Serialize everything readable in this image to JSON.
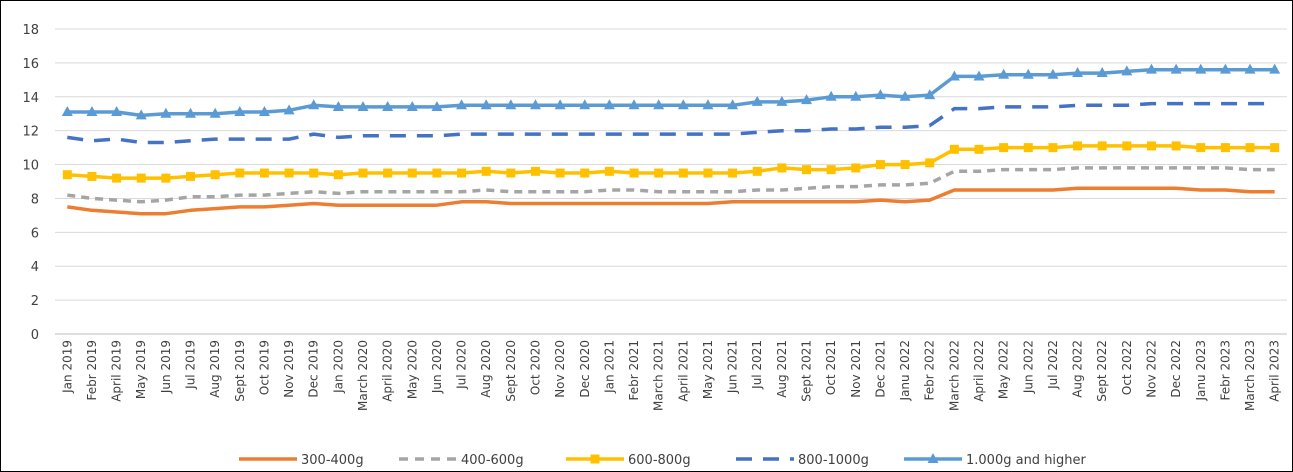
{
  "chart_data": {
    "type": "line",
    "title": "",
    "xlabel": "",
    "ylabel": "",
    "ylim": [
      0,
      18
    ],
    "yticks": [
      0,
      2,
      4,
      6,
      8,
      10,
      12,
      14,
      16,
      18
    ],
    "grid": "horizontal",
    "legend_position": "bottom",
    "categories": [
      "Jan 2019",
      "Febr 2019",
      "April 2019",
      "May 2019",
      "Jun 2019",
      "Jul 2019",
      "Aug 2019",
      "Sept 2019",
      "Oct 2019",
      "Nov 2019",
      "Dec 2019",
      "Jan 2020",
      "March 2020",
      "April 2020",
      "May 2020",
      "Jun 2020",
      "Jul 2020",
      "Aug 2020",
      "Sept 2020",
      "Oct 2020",
      "Nov 2020",
      "Dec 2020",
      "Jan 2021",
      "Febr 2021",
      "March 2021",
      "April 2021",
      "May 2021",
      "Jun 2021",
      "Jul 2021",
      "Aug 2021",
      "Sept 2021",
      "Oct 2021",
      "Nov 2021",
      "Dec 2021",
      "Janu 2022",
      "Febr 2022",
      "March 2022",
      "April 2022",
      "May 2022",
      "Jun 2022",
      "Jul 2022",
      "Aug 2022",
      "Sept 2022",
      "Oct 2022",
      "Nov 2022",
      "Dec 2022",
      "Janu 2023",
      "Febr 2023",
      "March 2023",
      "April 2023"
    ],
    "series": [
      {
        "name": "300-400g",
        "color": "#ED7D31",
        "style": "solid",
        "marker": "none",
        "values": [
          7.5,
          7.3,
          7.2,
          7.1,
          7.1,
          7.3,
          7.4,
          7.5,
          7.5,
          7.6,
          7.7,
          7.6,
          7.6,
          7.6,
          7.6,
          7.6,
          7.8,
          7.8,
          7.7,
          7.7,
          7.7,
          7.7,
          7.7,
          7.7,
          7.7,
          7.7,
          7.7,
          7.8,
          7.8,
          7.8,
          7.8,
          7.8,
          7.8,
          7.9,
          7.8,
          7.9,
          8.5,
          8.5,
          8.5,
          8.5,
          8.5,
          8.6,
          8.6,
          8.6,
          8.6,
          8.6,
          8.5,
          8.5,
          8.4,
          8.4
        ]
      },
      {
        "name": "400-600g",
        "color": "#A5A5A5",
        "style": "dashed",
        "marker": "none",
        "values": [
          8.2,
          8.0,
          7.9,
          7.8,
          7.9,
          8.1,
          8.1,
          8.2,
          8.2,
          8.3,
          8.4,
          8.3,
          8.4,
          8.4,
          8.4,
          8.4,
          8.4,
          8.5,
          8.4,
          8.4,
          8.4,
          8.4,
          8.5,
          8.5,
          8.4,
          8.4,
          8.4,
          8.4,
          8.5,
          8.5,
          8.6,
          8.7,
          8.7,
          8.8,
          8.8,
          8.9,
          9.6,
          9.6,
          9.7,
          9.7,
          9.7,
          9.8,
          9.8,
          9.8,
          9.8,
          9.8,
          9.8,
          9.8,
          9.7,
          9.7
        ]
      },
      {
        "name": "600-800g",
        "color": "#FFC000",
        "style": "solid",
        "marker": "square",
        "values": [
          9.4,
          9.3,
          9.2,
          9.2,
          9.2,
          9.3,
          9.4,
          9.5,
          9.5,
          9.5,
          9.5,
          9.4,
          9.5,
          9.5,
          9.5,
          9.5,
          9.5,
          9.6,
          9.5,
          9.6,
          9.5,
          9.5,
          9.6,
          9.5,
          9.5,
          9.5,
          9.5,
          9.5,
          9.6,
          9.8,
          9.7,
          9.7,
          9.8,
          10.0,
          10.0,
          10.1,
          10.9,
          10.9,
          11.0,
          11.0,
          11.0,
          11.1,
          11.1,
          11.1,
          11.1,
          11.1,
          11.0,
          11.0,
          11.0,
          11.0
        ]
      },
      {
        "name": "800-1000g",
        "color": "#4472C4",
        "style": "longdash",
        "marker": "none",
        "values": [
          11.6,
          11.4,
          11.5,
          11.3,
          11.3,
          11.4,
          11.5,
          11.5,
          11.5,
          11.5,
          11.8,
          11.6,
          11.7,
          11.7,
          11.7,
          11.7,
          11.8,
          11.8,
          11.8,
          11.8,
          11.8,
          11.8,
          11.8,
          11.8,
          11.8,
          11.8,
          11.8,
          11.8,
          11.9,
          12.0,
          12.0,
          12.1,
          12.1,
          12.2,
          12.2,
          12.3,
          13.3,
          13.3,
          13.4,
          13.4,
          13.4,
          13.5,
          13.5,
          13.5,
          13.6,
          13.6,
          13.6,
          13.6,
          13.6,
          13.6
        ]
      },
      {
        "name": "1.000g and higher",
        "color": "#5B9BD5",
        "style": "solid",
        "marker": "triangle",
        "values": [
          13.1,
          13.1,
          13.1,
          12.9,
          13.0,
          13.0,
          13.0,
          13.1,
          13.1,
          13.2,
          13.5,
          13.4,
          13.4,
          13.4,
          13.4,
          13.4,
          13.5,
          13.5,
          13.5,
          13.5,
          13.5,
          13.5,
          13.5,
          13.5,
          13.5,
          13.5,
          13.5,
          13.5,
          13.7,
          13.7,
          13.8,
          14.0,
          14.0,
          14.1,
          14.0,
          14.1,
          15.2,
          15.2,
          15.3,
          15.3,
          15.3,
          15.4,
          15.4,
          15.5,
          15.6,
          15.6,
          15.6,
          15.6,
          15.6,
          15.6
        ]
      }
    ]
  }
}
